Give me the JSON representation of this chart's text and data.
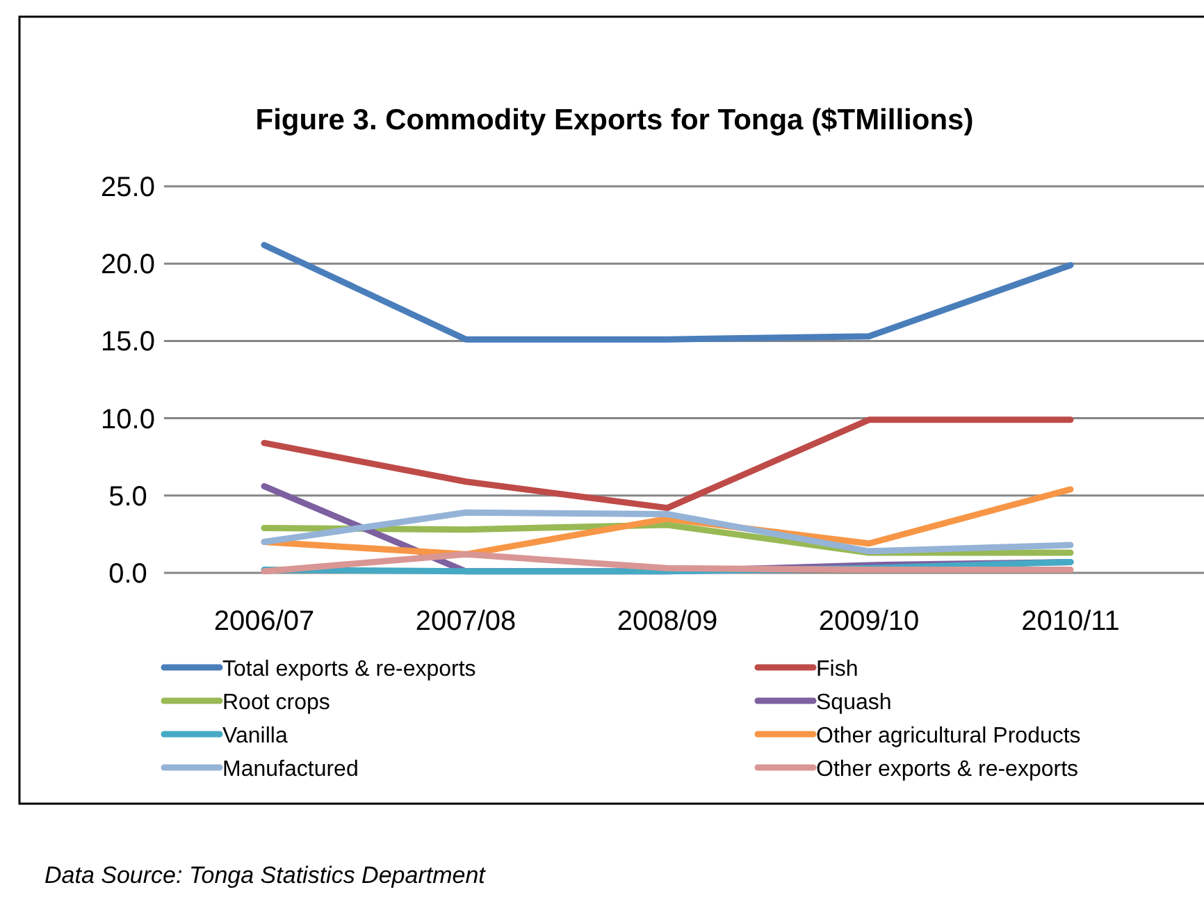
{
  "chart_data": {
    "type": "line",
    "title": "Figure 3. Commodity Exports for Tonga ($TMillions)",
    "categories": [
      "2006/07",
      "2007/08",
      "2008/09",
      "2009/10",
      "2010/11"
    ],
    "series": [
      {
        "name": "Total exports & re-exports",
        "color": "#4a7ebb",
        "values": [
          21.2,
          15.1,
          15.1,
          15.3,
          19.9
        ]
      },
      {
        "name": "Fish",
        "color": "#be4b48",
        "values": [
          8.4,
          5.9,
          4.2,
          9.9,
          9.9
        ]
      },
      {
        "name": "Root crops",
        "color": "#98b954",
        "values": [
          2.9,
          2.8,
          3.1,
          1.3,
          1.3
        ]
      },
      {
        "name": "Squash",
        "color": "#7d60a0",
        "values": [
          5.6,
          0.1,
          0.1,
          0.5,
          0.7
        ]
      },
      {
        "name": "Vanilla",
        "color": "#46aac5",
        "values": [
          0.2,
          0.1,
          0.1,
          0.3,
          0.7
        ]
      },
      {
        "name": "Other agricultural Products",
        "color": "#f79646",
        "values": [
          2.0,
          1.2,
          3.5,
          1.9,
          5.4
        ]
      },
      {
        "name": "Manufactured",
        "color": "#95b3d7",
        "values": [
          2.0,
          3.9,
          3.8,
          1.4,
          1.8
        ]
      },
      {
        "name": "Other exports & re-exports",
        "color": "#d99694",
        "values": [
          0.1,
          1.2,
          0.3,
          0.2,
          0.2
        ]
      }
    ],
    "ylim": [
      0,
      25
    ],
    "yticks": [
      {
        "value": 0,
        "label": "0.0"
      },
      {
        "value": 5,
        "label": "5.0"
      },
      {
        "value": 10,
        "label": "10.0"
      },
      {
        "value": 15,
        "label": "15.0"
      },
      {
        "value": 20,
        "label": "20.0"
      },
      {
        "value": 25,
        "label": "25.0"
      }
    ],
    "grid": "y",
    "legend": "bottom",
    "marker": "none",
    "line_style": "solid",
    "annotations": [
      "Data Source: Tonga Statistics Department"
    ]
  }
}
